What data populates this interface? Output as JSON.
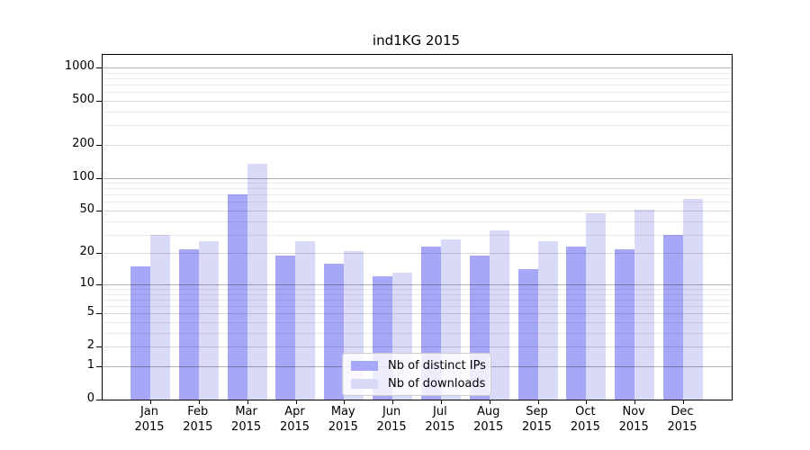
{
  "chart_data": {
    "type": "bar",
    "title": "ind1KG 2015",
    "categories": [
      "Jan",
      "Feb",
      "Mar",
      "Apr",
      "May",
      "Jun",
      "Jul",
      "Aug",
      "Sep",
      "Oct",
      "Nov",
      "Dec"
    ],
    "category_year": "2015",
    "series": [
      {
        "name": "Nb of distinct IPs",
        "color": "#a7a7f7",
        "values": [
          15,
          22,
          70,
          19,
          16,
          12,
          23,
          19,
          14,
          23,
          22,
          30
        ]
      },
      {
        "name": "Nb of downloads",
        "color": "#d9d9f8",
        "values": [
          30,
          26,
          135,
          26,
          21,
          13,
          27,
          33,
          26,
          47,
          51,
          64
        ]
      }
    ],
    "y_scale": "log1p",
    "ylim": [
      0,
      1275
    ],
    "y_ticks": [
      0,
      1,
      2,
      5,
      10,
      20,
      50,
      100,
      200,
      500,
      1000
    ],
    "gridlines": {
      "dark": [
        1,
        10,
        100,
        1000
      ],
      "light": [
        2,
        5,
        20,
        50,
        200,
        500
      ],
      "minor": [
        3,
        4,
        6,
        7,
        8,
        9,
        30,
        40,
        60,
        70,
        80,
        90,
        300,
        400,
        600,
        700,
        800,
        900
      ]
    },
    "grid": true,
    "legend_position": "lower center"
  },
  "colors": {
    "bar_dark": "#a7a7f7",
    "bar_light": "#d9d9f8",
    "grid_major": "#b0b0b0",
    "grid_minor": "#e8e8e8",
    "axis": "#000000",
    "legend_border": "#cccccc"
  }
}
